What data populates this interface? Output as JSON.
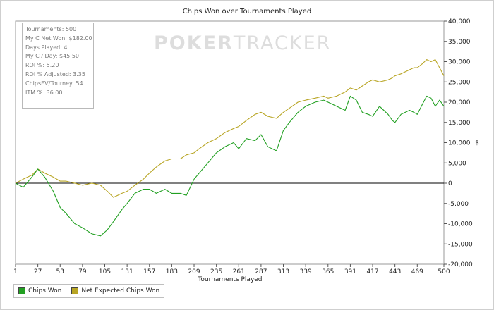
{
  "chart_data": {
    "type": "line",
    "title": "Chips Won over Tournaments Played",
    "xlabel": "Tournaments Played",
    "ylabel": "$",
    "xlim": [
      1,
      500
    ],
    "ylim": [
      -20000,
      40000
    ],
    "x_ticks": [
      1,
      27,
      53,
      79,
      105,
      131,
      157,
      183,
      209,
      235,
      261,
      287,
      313,
      339,
      365,
      391,
      417,
      443,
      469,
      500
    ],
    "y_ticks": [
      {
        "value": 40000,
        "label": "40,000"
      },
      {
        "value": 35000,
        "label": "35,000"
      },
      {
        "value": 30000,
        "label": "30,000"
      },
      {
        "value": 25000,
        "label": "25,000"
      },
      {
        "value": 20000,
        "label": "20,000"
      },
      {
        "value": 15000,
        "label": "15,000"
      },
      {
        "value": 10000,
        "label": "10,000"
      },
      {
        "value": 5000,
        "label": "5,000"
      },
      {
        "value": 0,
        "label": "0"
      },
      {
        "value": -5000,
        "label": "-5,000"
      },
      {
        "value": -10000,
        "label": "-10,000"
      },
      {
        "value": -15000,
        "label": "-15,000"
      },
      {
        "value": -20000,
        "label": "-20,000"
      }
    ],
    "grid": false,
    "legend_position": "bottom-left",
    "series": [
      {
        "name": "Chips Won",
        "color": "#22a022",
        "x": [
          1,
          10,
          20,
          27,
          35,
          45,
          53,
          60,
          70,
          79,
          90,
          100,
          108,
          115,
          125,
          131,
          140,
          150,
          157,
          165,
          175,
          183,
          193,
          200,
          209,
          215,
          225,
          235,
          245,
          255,
          261,
          270,
          280,
          287,
          295,
          305,
          313,
          320,
          330,
          339,
          350,
          360,
          365,
          375,
          385,
          391,
          398,
          405,
          412,
          417,
          425,
          435,
          440,
          443,
          450,
          460,
          465,
          469,
          475,
          480,
          485,
          490,
          495,
          500
        ],
        "y": [
          0,
          -1000,
          1500,
          3500,
          1500,
          -2000,
          -6000,
          -7500,
          -10000,
          -11000,
          -12500,
          -13000,
          -11500,
          -9500,
          -6500,
          -5000,
          -2500,
          -1500,
          -1500,
          -2500,
          -1500,
          -2500,
          -2500,
          -3000,
          1000,
          2500,
          5000,
          7500,
          9000,
          10000,
          8500,
          11000,
          10500,
          12000,
          9000,
          8000,
          13000,
          15000,
          17500,
          19000,
          20000,
          20500,
          20000,
          19000,
          18000,
          21500,
          20500,
          17500,
          17000,
          16500,
          19000,
          17000,
          15500,
          15000,
          17000,
          18000,
          17500,
          17000,
          19500,
          21500,
          21000,
          19000,
          20500,
          19000
        ]
      },
      {
        "name": "Net Expected Chips Won",
        "color": "#b8a524",
        "x": [
          1,
          10,
          20,
          27,
          35,
          45,
          53,
          60,
          70,
          79,
          90,
          100,
          108,
          115,
          125,
          131,
          140,
          150,
          157,
          165,
          175,
          183,
          193,
          200,
          209,
          215,
          225,
          235,
          245,
          255,
          261,
          270,
          280,
          287,
          295,
          305,
          313,
          320,
          330,
          339,
          350,
          360,
          365,
          375,
          385,
          391,
          398,
          405,
          412,
          417,
          425,
          435,
          440,
          443,
          450,
          460,
          465,
          469,
          475,
          480,
          485,
          490,
          495,
          500
        ],
        "y": [
          0,
          1000,
          2000,
          3500,
          2500,
          1500,
          500,
          500,
          0,
          -500,
          0,
          -500,
          -2000,
          -3500,
          -2500,
          -2000,
          -500,
          1000,
          2500,
          4000,
          5500,
          6000,
          6000,
          7000,
          7500,
          8500,
          10000,
          11000,
          12500,
          13500,
          14000,
          15500,
          17000,
          17500,
          16500,
          16000,
          17500,
          18500,
          20000,
          20500,
          21000,
          21500,
          21000,
          21500,
          22500,
          23500,
          23000,
          24000,
          25000,
          25500,
          25000,
          25500,
          26000,
          26500,
          27000,
          28000,
          28500,
          28500,
          29500,
          30500,
          30000,
          30500,
          28500,
          26500
        ]
      }
    ]
  },
  "stats": [
    "Tournaments: 500",
    "My C Net Won: $182.00",
    "Days Played: 4",
    "My C / Day: $45.50",
    "ROI %: 5.20",
    "ROI % Adjusted: 3.35",
    "ChipsEV/Tourney: 54",
    "ITM %: 36.00"
  ],
  "watermark": {
    "part1": "POKER",
    "part2": "TRACKER"
  },
  "legend": [
    {
      "label": "Chips Won",
      "color": "#22a022"
    },
    {
      "label": "Net Expected Chips Won",
      "color": "#b8a524"
    }
  ]
}
